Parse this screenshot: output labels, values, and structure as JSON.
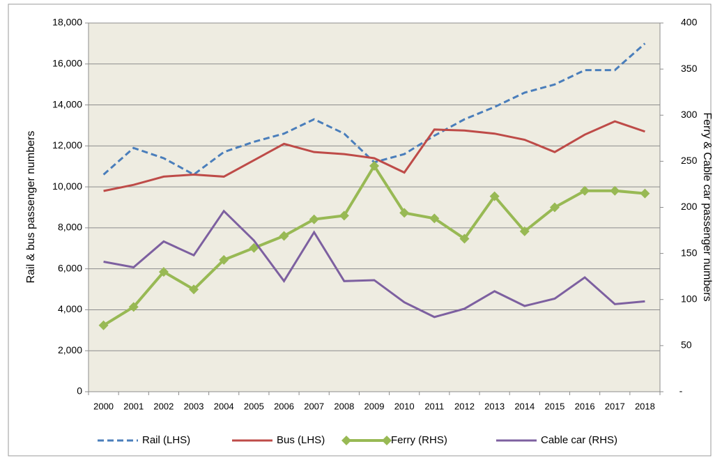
{
  "chart_data": {
    "type": "line",
    "categories": [
      "2000",
      "2001",
      "2002",
      "2003",
      "2004",
      "2005",
      "2006",
      "2007",
      "2008",
      "2009",
      "2010",
      "2011",
      "2012",
      "2013",
      "2014",
      "2015",
      "2016",
      "2017",
      "2018"
    ],
    "y_label": "Rail & bus passenger numbers",
    "y2_label": "Ferry & Cable car passenger numbers",
    "ylim": [
      0,
      18000
    ],
    "yticks": [
      0,
      {
        "value": 2000,
        "label": "2,000"
      },
      {
        "value": 4000,
        "label": "4,000"
      },
      {
        "value": 6000,
        "label": "6,000"
      },
      {
        "value": 8000,
        "label": "8,000"
      },
      {
        "value": 10000,
        "label": "10,000"
      },
      {
        "value": 12000,
        "label": "12,000"
      },
      {
        "value": 14000,
        "label": "14,000"
      },
      {
        "value": 16000,
        "label": "16,000"
      },
      {
        "value": 18000,
        "label": "18,000"
      }
    ],
    "y2lim": [
      0,
      400
    ],
    "y2ticks": [
      {
        "value": 0,
        "label": "-"
      },
      50,
      100,
      150,
      200,
      250,
      300,
      350,
      400
    ],
    "grid": true,
    "legend": "bottom",
    "series": [
      {
        "name": "Rail (LHS)",
        "color": "#4a7ebb",
        "line_style": "dashed",
        "values": [
          10600,
          11900,
          11400,
          10600,
          11700,
          12200,
          12600,
          13300,
          12600,
          11200,
          11600,
          12500,
          13300,
          13900,
          14600,
          15000,
          15700,
          15700,
          17000
        ]
      },
      {
        "name": "Bus (LHS)",
        "color": "#be4b48",
        "line_style": "solid",
        "values": [
          9800,
          10100,
          10500,
          10600,
          10500,
          11300,
          12100,
          11700,
          11600,
          11400,
          10700,
          12800,
          12750,
          12600,
          12300,
          11700,
          12550,
          13200,
          12700
        ]
      },
      {
        "name": "Ferry (RHS)",
        "color": "#98b954",
        "line_style": "solid",
        "marker": "diamond",
        "axis": "y2",
        "values": [
          72,
          92,
          130,
          111,
          143,
          156,
          169,
          187,
          191,
          245,
          194,
          188,
          166,
          212,
          174,
          200,
          218,
          218,
          215
        ]
      },
      {
        "name": "Cable car (RHS)",
        "color": "#7d60a0",
        "line_style": "solid",
        "axis": "y2",
        "values": [
          141,
          135,
          163,
          148,
          196,
          164,
          120,
          173,
          120,
          121,
          97,
          81,
          90,
          109,
          93,
          101,
          124,
          95,
          98
        ]
      }
    ]
  }
}
